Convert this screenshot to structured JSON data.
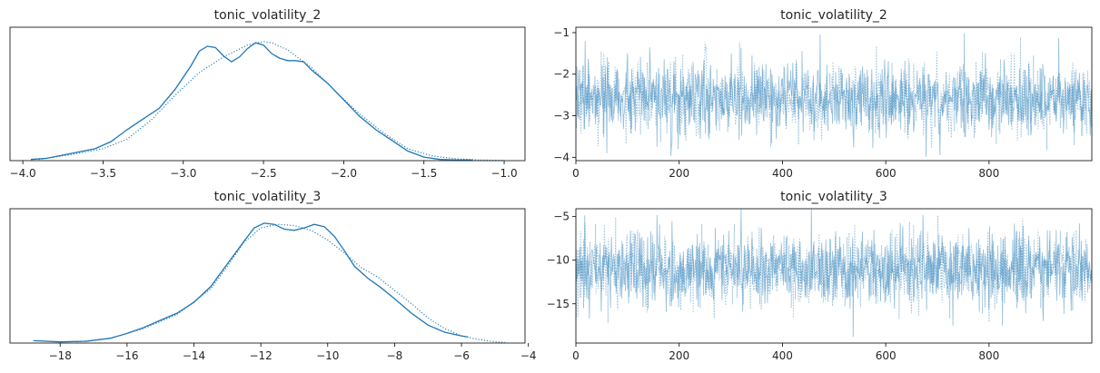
{
  "figure": {
    "background": "#ffffff"
  },
  "chart_data": [
    {
      "type": "line",
      "subtype": "kde",
      "title": "tonic_volatility_2",
      "color": "#1f77b4",
      "xlim": [
        -4.08,
        -0.87
      ],
      "ylim": [
        0,
        1.12
      ],
      "xticks": [
        -4.0,
        -3.5,
        -3.0,
        -2.5,
        -2.0,
        -1.5,
        -1.0
      ],
      "xtick_labels": [
        "−4.0",
        "−3.5",
        "−3.0",
        "−2.5",
        "−2.0",
        "−1.5",
        "−1.0"
      ],
      "y_ticks_shown": false,
      "series": [
        {
          "style": "solid",
          "x": [
            -3.95,
            -3.85,
            -3.7,
            -3.55,
            -3.45,
            -3.35,
            -3.25,
            -3.15,
            -3.05,
            -2.95,
            -2.9,
            -2.85,
            -2.8,
            -2.75,
            -2.7,
            -2.65,
            -2.6,
            -2.55,
            -2.5,
            -2.45,
            -2.4,
            -2.35,
            -2.3,
            -2.25,
            -2.2,
            -2.1,
            -2.0,
            -1.9,
            -1.8,
            -1.7,
            -1.6,
            -1.5,
            -1.4,
            -1.3,
            -1.2
          ],
          "y": [
            0.01,
            0.02,
            0.06,
            0.1,
            0.16,
            0.26,
            0.35,
            0.44,
            0.6,
            0.8,
            0.92,
            0.96,
            0.95,
            0.88,
            0.83,
            0.87,
            0.94,
            0.99,
            0.97,
            0.9,
            0.86,
            0.84,
            0.84,
            0.83,
            0.76,
            0.65,
            0.51,
            0.37,
            0.26,
            0.17,
            0.08,
            0.03,
            0.01,
            0.005,
            0.005
          ]
        },
        {
          "style": "dotted",
          "x": [
            -3.9,
            -3.7,
            -3.5,
            -3.35,
            -3.2,
            -3.05,
            -2.9,
            -2.75,
            -2.6,
            -2.5,
            -2.45,
            -2.35,
            -2.2,
            -2.05,
            -1.9,
            -1.75,
            -1.6,
            -1.45,
            -1.3,
            -1.15,
            -1.0
          ],
          "y": [
            0.01,
            0.05,
            0.1,
            0.18,
            0.34,
            0.55,
            0.74,
            0.87,
            0.97,
            1.0,
            0.99,
            0.93,
            0.78,
            0.58,
            0.39,
            0.23,
            0.1,
            0.04,
            0.015,
            0.005,
            0.002
          ]
        }
      ]
    },
    {
      "type": "line",
      "subtype": "trace",
      "title": "tonic_volatility_2",
      "color": "#1f77b4",
      "xlim": [
        0,
        999
      ],
      "ylim": [
        -4.08,
        -0.87
      ],
      "xticks": [
        0,
        200,
        400,
        600,
        800
      ],
      "xtick_labels": [
        "0",
        "200",
        "400",
        "600",
        "800"
      ],
      "yticks": [
        -4,
        -3,
        -2,
        -1
      ],
      "ytick_labels": [
        "−4",
        "−3",
        "−2",
        "−1"
      ],
      "series_count": 2,
      "draws": 1000,
      "center": -2.6,
      "spread": 0.42,
      "annotated_extremes": [
        {
          "x": 18,
          "y": -1.2
        },
        {
          "x": 752,
          "y": -1.02
        },
        {
          "x": 705,
          "y": -3.95
        },
        {
          "x": 198,
          "y": -3.8
        },
        {
          "x": 575,
          "y": -3.78
        },
        {
          "x": 60,
          "y": -3.9
        }
      ]
    },
    {
      "type": "line",
      "subtype": "kde",
      "title": "tonic_volatility_3",
      "color": "#1f77b4",
      "xlim": [
        -19.5,
        -4.1
      ],
      "ylim": [
        0,
        1.12
      ],
      "xticks": [
        -18,
        -16,
        -14,
        -12,
        -10,
        -8,
        -6,
        -4
      ],
      "xtick_labels": [
        "−18",
        "−16",
        "−14",
        "−12",
        "−10",
        "−8",
        "−6",
        "−4"
      ],
      "y_ticks_shown": false,
      "series": [
        {
          "style": "solid",
          "x": [
            -18.8,
            -18.0,
            -17.2,
            -16.5,
            -16.0,
            -15.5,
            -15.0,
            -14.5,
            -14.0,
            -13.5,
            -13.0,
            -12.5,
            -12.2,
            -11.9,
            -11.6,
            -11.3,
            -11.0,
            -10.7,
            -10.4,
            -10.1,
            -9.8,
            -9.5,
            -9.2,
            -8.8,
            -8.4,
            -8.0,
            -7.5,
            -7.0,
            -6.5,
            -6.0,
            -5.8
          ],
          "y": [
            0.02,
            0.01,
            0.015,
            0.04,
            0.08,
            0.13,
            0.19,
            0.25,
            0.34,
            0.47,
            0.66,
            0.85,
            0.96,
            1.0,
            0.99,
            0.95,
            0.94,
            0.96,
            0.99,
            0.97,
            0.89,
            0.77,
            0.64,
            0.54,
            0.46,
            0.37,
            0.25,
            0.15,
            0.09,
            0.06,
            0.05
          ]
        },
        {
          "style": "dotted",
          "x": [
            -17.5,
            -16.5,
            -15.5,
            -14.5,
            -13.5,
            -13.0,
            -12.5,
            -12.0,
            -11.5,
            -11.0,
            -10.5,
            -10.0,
            -9.5,
            -9.0,
            -8.5,
            -8.0,
            -7.5,
            -7.0,
            -6.5,
            -6.0,
            -5.5,
            -5.0,
            -4.7
          ],
          "y": [
            0.01,
            0.04,
            0.12,
            0.24,
            0.45,
            0.64,
            0.84,
            0.96,
            0.99,
            0.98,
            0.94,
            0.86,
            0.75,
            0.63,
            0.55,
            0.44,
            0.33,
            0.21,
            0.12,
            0.06,
            0.03,
            0.01,
            0.005
          ]
        }
      ]
    },
    {
      "type": "line",
      "subtype": "trace",
      "title": "tonic_volatility_3",
      "color": "#1f77b4",
      "xlim": [
        0,
        999
      ],
      "ylim": [
        -19.5,
        -4.1
      ],
      "xticks": [
        0,
        200,
        400,
        600,
        800
      ],
      "xtick_labels": [
        "0",
        "200",
        "400",
        "600",
        "800"
      ],
      "yticks": [
        -15,
        -10,
        -5
      ],
      "ytick_labels": [
        "−15",
        "−10",
        "−5"
      ],
      "series_count": 2,
      "draws": 1000,
      "center": -11.0,
      "spread": 2.1,
      "annotated_extremes": [
        {
          "x": 537,
          "y": -18.8
        },
        {
          "x": 730,
          "y": -17.5
        },
        {
          "x": 672,
          "y": -4.8
        },
        {
          "x": 186,
          "y": -5.5
        },
        {
          "x": 975,
          "y": -5.8
        },
        {
          "x": 15,
          "y": -15.5
        }
      ]
    }
  ]
}
